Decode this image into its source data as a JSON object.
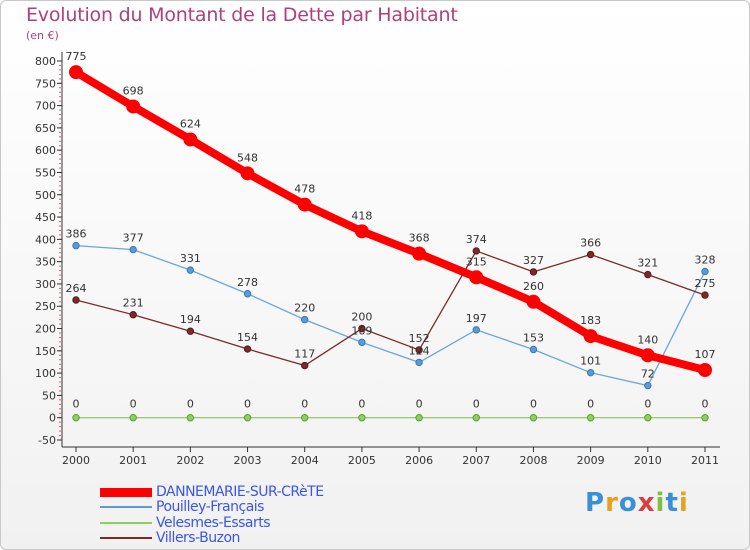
{
  "chart_data": {
    "type": "line",
    "title": "Evolution du Montant de la Dette par Habitant",
    "subtitle": "(en €)",
    "x": [
      "2000",
      "2001",
      "2002",
      "2003",
      "2004",
      "2005",
      "2006",
      "2007",
      "2008",
      "2009",
      "2010",
      "2011"
    ],
    "ylim": [
      -50,
      800
    ],
    "yticks": [
      -50,
      0,
      50,
      100,
      150,
      200,
      250,
      300,
      350,
      400,
      450,
      500,
      550,
      600,
      650,
      700,
      750,
      800
    ],
    "grid": false,
    "legend_position": "bottom-left",
    "series": [
      {
        "name": "DANNEMARIE-SUR-CRèTE",
        "color": "#ff0000",
        "values": [
          775,
          698,
          624,
          548,
          478,
          418,
          368,
          315,
          260,
          183,
          140,
          107
        ]
      },
      {
        "name": "Pouilley-Français",
        "color": "#5b9bd5",
        "values": [
          386,
          377,
          331,
          278,
          220,
          169,
          124,
          197,
          153,
          101,
          72,
          328
        ]
      },
      {
        "name": "Velesmes-Essarts",
        "color": "#90d060",
        "values": [
          0,
          0,
          0,
          0,
          0,
          0,
          0,
          0,
          0,
          0,
          0,
          0
        ]
      },
      {
        "name": "Villers-Buzon",
        "color": "#7a2a2a",
        "values": [
          264,
          231,
          194,
          154,
          117,
          200,
          152,
          374,
          327,
          366,
          321,
          275
        ]
      }
    ]
  },
  "logo": {
    "text": "Proxiti",
    "letters": [
      "P",
      "r",
      "o",
      "x",
      "i",
      "t",
      "i"
    ],
    "colors": [
      "#3a8fd8",
      "#e8a020",
      "#3a8fd8",
      "#d84040",
      "#80c040",
      "#3a8fd8",
      "#e8a020"
    ]
  }
}
